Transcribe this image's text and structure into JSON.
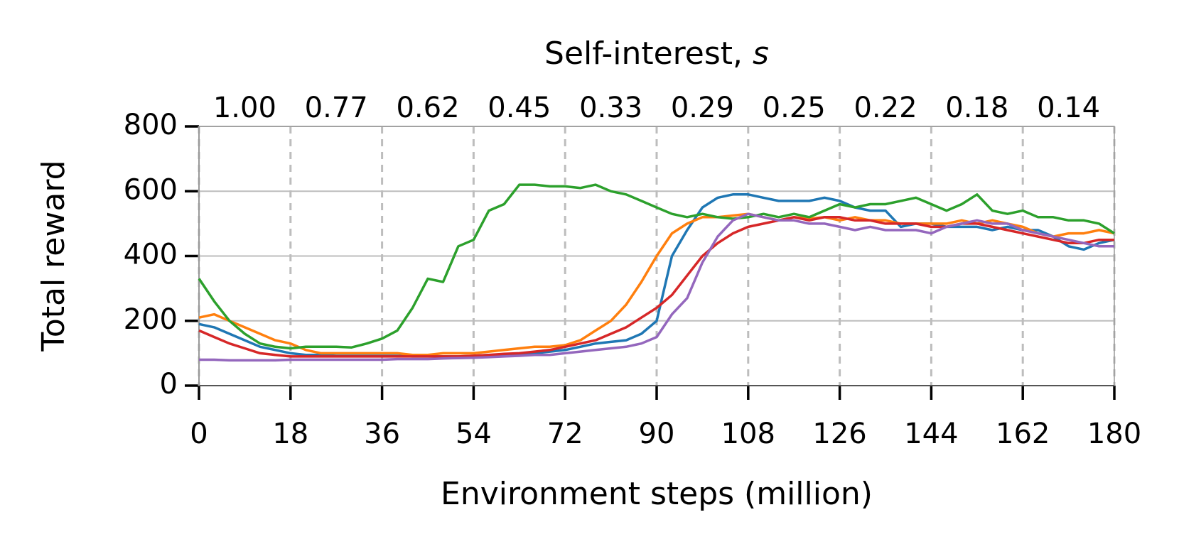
{
  "chart_data": {
    "type": "line",
    "top_xlabel": "Self-interest,",
    "top_xlabel_var": "s",
    "xlabel": "Environment steps (million)",
    "ylabel": "Total reward",
    "x": [
      0,
      3,
      6,
      9,
      12,
      15,
      18,
      21,
      24,
      27,
      30,
      33,
      36,
      39,
      42,
      45,
      48,
      51,
      54,
      57,
      60,
      63,
      66,
      69,
      72,
      75,
      78,
      81,
      84,
      87,
      90,
      93,
      96,
      99,
      102,
      105,
      108,
      111,
      114,
      117,
      120,
      123,
      126,
      129,
      132,
      135,
      138,
      141,
      144,
      147,
      150,
      153,
      156,
      159,
      162,
      165,
      168,
      171,
      174,
      177,
      180
    ],
    "series": [
      {
        "color": "#1f77b4",
        "values": [
          190,
          180,
          160,
          140,
          120,
          110,
          100,
          95,
          95,
          92,
          92,
          92,
          92,
          92,
          90,
          90,
          90,
          90,
          92,
          95,
          95,
          98,
          100,
          105,
          110,
          120,
          130,
          135,
          140,
          160,
          200,
          400,
          480,
          550,
          580,
          590,
          590,
          580,
          570,
          570,
          570,
          580,
          570,
          550,
          540,
          540,
          490,
          500,
          500,
          490,
          490,
          490,
          480,
          490,
          480,
          480,
          460,
          430,
          420,
          440,
          450
        ]
      },
      {
        "color": "#ff7f0e",
        "values": [
          210,
          220,
          200,
          180,
          160,
          140,
          130,
          110,
          100,
          100,
          100,
          100,
          100,
          100,
          95,
          95,
          100,
          100,
          100,
          105,
          110,
          115,
          120,
          120,
          125,
          140,
          170,
          200,
          250,
          320,
          400,
          470,
          500,
          520,
          520,
          525,
          530,
          520,
          510,
          520,
          515,
          520,
          510,
          520,
          510,
          510,
          500,
          500,
          500,
          500,
          510,
          500,
          510,
          500,
          490,
          470,
          460,
          470,
          470,
          480,
          470
        ]
      },
      {
        "color": "#2ca02c",
        "values": [
          330,
          260,
          200,
          160,
          130,
          120,
          115,
          120,
          120,
          120,
          118,
          130,
          145,
          170,
          240,
          330,
          320,
          430,
          450,
          540,
          560,
          620,
          620,
          615,
          615,
          610,
          620,
          600,
          590,
          570,
          550,
          530,
          520,
          530,
          520,
          515,
          520,
          530,
          520,
          530,
          520,
          540,
          560,
          550,
          560,
          560,
          570,
          580,
          560,
          540,
          560,
          590,
          540,
          530,
          540,
          520,
          520,
          510,
          510,
          500,
          470
        ]
      },
      {
        "color": "#d62728",
        "values": [
          170,
          150,
          130,
          115,
          100,
          95,
          90,
          90,
          90,
          90,
          90,
          90,
          90,
          90,
          90,
          90,
          90,
          90,
          92,
          95,
          98,
          100,
          105,
          110,
          120,
          130,
          140,
          160,
          180,
          210,
          240,
          280,
          340,
          400,
          440,
          470,
          490,
          500,
          510,
          520,
          510,
          520,
          520,
          510,
          510,
          500,
          500,
          500,
          490,
          490,
          500,
          500,
          490,
          480,
          470,
          460,
          450,
          440,
          440,
          450,
          450
        ]
      },
      {
        "color": "#9467bd",
        "values": [
          80,
          80,
          78,
          78,
          78,
          78,
          80,
          80,
          80,
          80,
          80,
          80,
          80,
          82,
          82,
          82,
          84,
          85,
          86,
          88,
          90,
          92,
          95,
          95,
          100,
          105,
          110,
          115,
          120,
          130,
          150,
          220,
          270,
          380,
          460,
          510,
          530,
          520,
          510,
          510,
          500,
          500,
          490,
          480,
          490,
          480,
          480,
          480,
          470,
          490,
          500,
          510,
          500,
          500,
          480,
          470,
          460,
          450,
          440,
          430,
          430
        ]
      }
    ],
    "xlim": [
      0,
      180
    ],
    "xticks": [
      0,
      18,
      36,
      54,
      72,
      90,
      108,
      126,
      144,
      162,
      180
    ],
    "ylim": [
      0,
      800
    ],
    "yticks": [
      0,
      200,
      400,
      600,
      800
    ],
    "top_xticks": [
      {
        "value": 9,
        "label": "1.00"
      },
      {
        "value": 27,
        "label": "0.77"
      },
      {
        "value": 45,
        "label": "0.62"
      },
      {
        "value": 63,
        "label": "0.45"
      },
      {
        "value": 81,
        "label": "0.33"
      },
      {
        "value": 99,
        "label": "0.29"
      },
      {
        "value": 117,
        "label": "0.25"
      },
      {
        "value": 135,
        "label": "0.22"
      },
      {
        "value": 153,
        "label": "0.18"
      },
      {
        "value": 171,
        "label": "0.14"
      }
    ],
    "grid": true
  }
}
